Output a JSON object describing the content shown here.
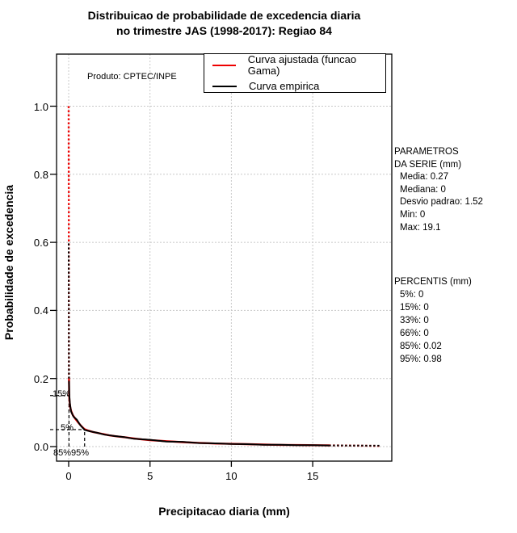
{
  "title": {
    "line1": "Distribuicao de probabilidade de excedencia diaria",
    "line2": "no trimestre JAS (1998-2017): Regiao 84"
  },
  "product_note": "Produto: CPTEC/INPE",
  "legend": {
    "items": [
      {
        "label": "Curva ajustada (funcao Gama)",
        "color": "#ee0000"
      },
      {
        "label": "Curva empirica",
        "color": "#000000"
      }
    ]
  },
  "axis_labels": {
    "x": "Precipitacao diaria (mm)",
    "y": "Probabilidade de excedencia"
  },
  "plot_annotations": {
    "exceed15_label": "15%",
    "exceed5_label": "5%",
    "q85_label": "85%",
    "q95_label": "95%"
  },
  "side_panel": {
    "parametros": {
      "header_line1": "PARAMETROS",
      "header_line2": "DA SERIE (mm)",
      "items": [
        "Media: 0.27",
        "Mediana: 0",
        "Desvio padrao: 1.52",
        "Min: 0",
        "Max: 19.1"
      ]
    },
    "percentis": {
      "header": "PERCENTIS (mm)",
      "items": [
        "5%: 0",
        "15%: 0",
        "33%: 0",
        "66%: 0",
        "85%: 0.02",
        "95%: 0.98"
      ]
    }
  },
  "chart_data": {
    "type": "line",
    "title": "Distribuicao de probabilidade de excedencia diaria no trimestre JAS (1998-2017): Regiao 84",
    "xlabel": "Precipitacao diaria (mm)",
    "ylabel": "Probabilidade de excedencia",
    "xlim": [
      -0.75,
      19.85
    ],
    "ylim": [
      -0.043,
      1.053
    ],
    "grid": true,
    "grid_color": "#c8c8c8",
    "legend_position": "top",
    "x_ticks": {
      "values": [
        0,
        5,
        10,
        15
      ],
      "labels": [
        "0",
        "5",
        "10",
        "15"
      ]
    },
    "y_ticks": {
      "values": [
        0,
        0.2,
        0.4,
        0.6,
        0.8,
        1.0
      ],
      "labels": [
        "0.0",
        "0.2",
        "0.4",
        "0.6",
        "0.8",
        "1.0"
      ]
    },
    "series": [
      {
        "name": "Curva ajustada (funcao Gama)",
        "color": "#ee0000",
        "points": [
          [
            0,
            1.0
          ],
          [
            0.008,
            0.7
          ],
          [
            0.012,
            0.45
          ],
          [
            0.016,
            0.3
          ],
          [
            0.02,
            0.2
          ],
          [
            0.03,
            0.155
          ],
          [
            0.05,
            0.135
          ],
          [
            0.1,
            0.115
          ],
          [
            0.15,
            0.105
          ],
          [
            0.25,
            0.093
          ],
          [
            0.4,
            0.082
          ],
          [
            0.6,
            0.07
          ],
          [
            0.8,
            0.059
          ],
          [
            0.98,
            0.051
          ],
          [
            1.2,
            0.047
          ],
          [
            1.5,
            0.043
          ],
          [
            2,
            0.038
          ],
          [
            2.5,
            0.033
          ],
          [
            3,
            0.03
          ],
          [
            3.5,
            0.027
          ],
          [
            4,
            0.024
          ],
          [
            4.5,
            0.021
          ],
          [
            5,
            0.019
          ],
          [
            6,
            0.016
          ],
          [
            7,
            0.013
          ],
          [
            8,
            0.011
          ],
          [
            9,
            0.009
          ],
          [
            10,
            0.008
          ],
          [
            11,
            0.007
          ],
          [
            12,
            0.006
          ],
          [
            13,
            0.005
          ],
          [
            14,
            0.0045
          ],
          [
            15,
            0.004
          ],
          [
            16,
            0.0035
          ],
          [
            17,
            0.003
          ],
          [
            18,
            0.0025
          ],
          [
            19.1,
            0.002
          ]
        ]
      },
      {
        "name": "Curva empirica",
        "color": "#000000",
        "points": [
          [
            0,
            0.597
          ],
          [
            0.008,
            0.4
          ],
          [
            0.014,
            0.27
          ],
          [
            0.02,
            0.19
          ],
          [
            0.04,
            0.15
          ],
          [
            0.08,
            0.125
          ],
          [
            0.15,
            0.103
          ],
          [
            0.3,
            0.088
          ],
          [
            0.5,
            0.079
          ],
          [
            0.7,
            0.064
          ],
          [
            0.98,
            0.049
          ],
          [
            1.3,
            0.045
          ],
          [
            1.8,
            0.04
          ],
          [
            2.2,
            0.035
          ],
          [
            2.8,
            0.031
          ],
          [
            3.4,
            0.028
          ],
          [
            4,
            0.023
          ],
          [
            5,
            0.02
          ],
          [
            6,
            0.015
          ],
          [
            7,
            0.014
          ],
          [
            8,
            0.0105
          ],
          [
            9,
            0.0095
          ],
          [
            10,
            0.0075
          ],
          [
            11,
            0.0072
          ],
          [
            12,
            0.0055
          ],
          [
            13,
            0.0052
          ],
          [
            14,
            0.0042
          ],
          [
            15,
            0.0041
          ],
          [
            16,
            0.0033
          ],
          [
            17,
            0.003
          ],
          [
            18,
            0.0028
          ],
          [
            19.1,
            0.0025
          ]
        ]
      }
    ],
    "percentile_markers": [
      {
        "percentile": "85%",
        "x": 0.02,
        "exceedance_prob": 0.15
      },
      {
        "percentile": "95%",
        "x": 0.98,
        "exceedance_prob": 0.05
      }
    ],
    "series_stats": {
      "media": 0.27,
      "mediana": 0,
      "desvio_padrao": 1.52,
      "min": 0,
      "max": 19.1,
      "percentis": {
        "5": 0,
        "15": 0,
        "33": 0,
        "66": 0,
        "85": 0.02,
        "95": 0.98
      }
    }
  }
}
